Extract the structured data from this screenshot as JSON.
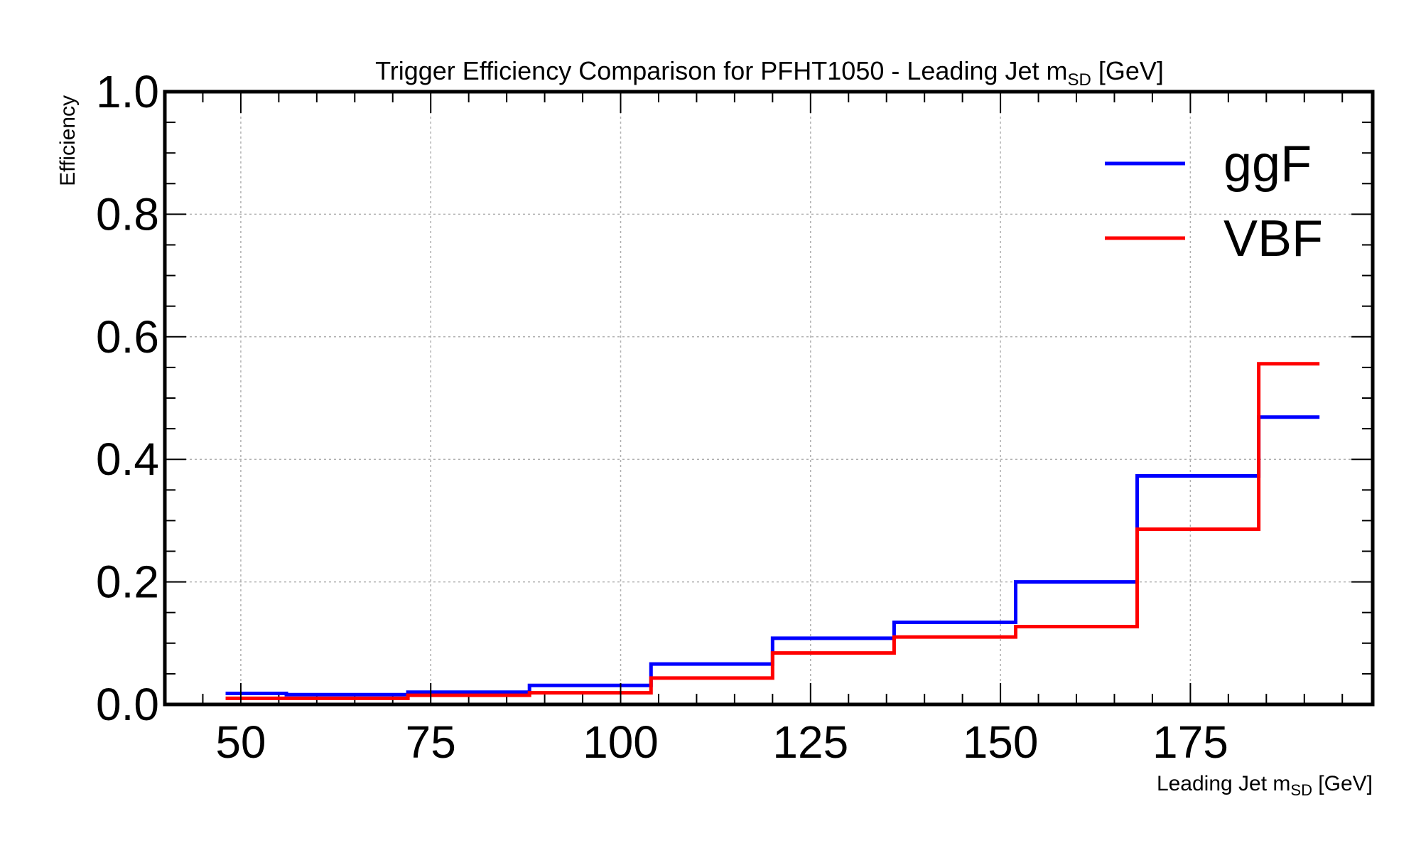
{
  "chart_data": {
    "type": "line",
    "drawstyle": "steps",
    "title": "Trigger Efficiency Comparison for PFHT1050 - Leading Jet m",
    "title_sub": "SD",
    "title_suffix": " [GeV]",
    "xlabel": "Leading Jet m",
    "xlabel_sub": "SD",
    "xlabel_suffix": " [GeV]",
    "ylabel": "Efficiency",
    "xlim": [
      40,
      199
    ],
    "ylim": [
      0,
      1.0
    ],
    "x_major_ticks": [
      50,
      75,
      100,
      125,
      150,
      175
    ],
    "x_tick_labels": [
      "50",
      "75",
      "100",
      "125",
      "150",
      "175"
    ],
    "y_major_ticks": [
      0,
      0.2,
      0.4,
      0.6,
      0.8,
      1.0
    ],
    "y_tick_labels": [
      "0.0",
      "0.2",
      "0.4",
      "0.6",
      "0.8",
      "1.0"
    ],
    "grid": true,
    "legend_position": "top-right",
    "bin_edges": [
      48,
      56,
      72,
      88,
      104,
      120,
      136,
      152,
      168,
      184,
      192
    ],
    "series": [
      {
        "name": "ggF",
        "color": "#0000ff",
        "values": [
          0.018,
          0.016,
          0.02,
          0.031,
          0.066,
          0.108,
          0.134,
          0.2,
          0.373,
          0.469
        ]
      },
      {
        "name": "VBF",
        "color": "#ff0000",
        "values": [
          0.01,
          0.01,
          0.015,
          0.019,
          0.043,
          0.084,
          0.11,
          0.127,
          0.286,
          0.556
        ]
      }
    ]
  }
}
